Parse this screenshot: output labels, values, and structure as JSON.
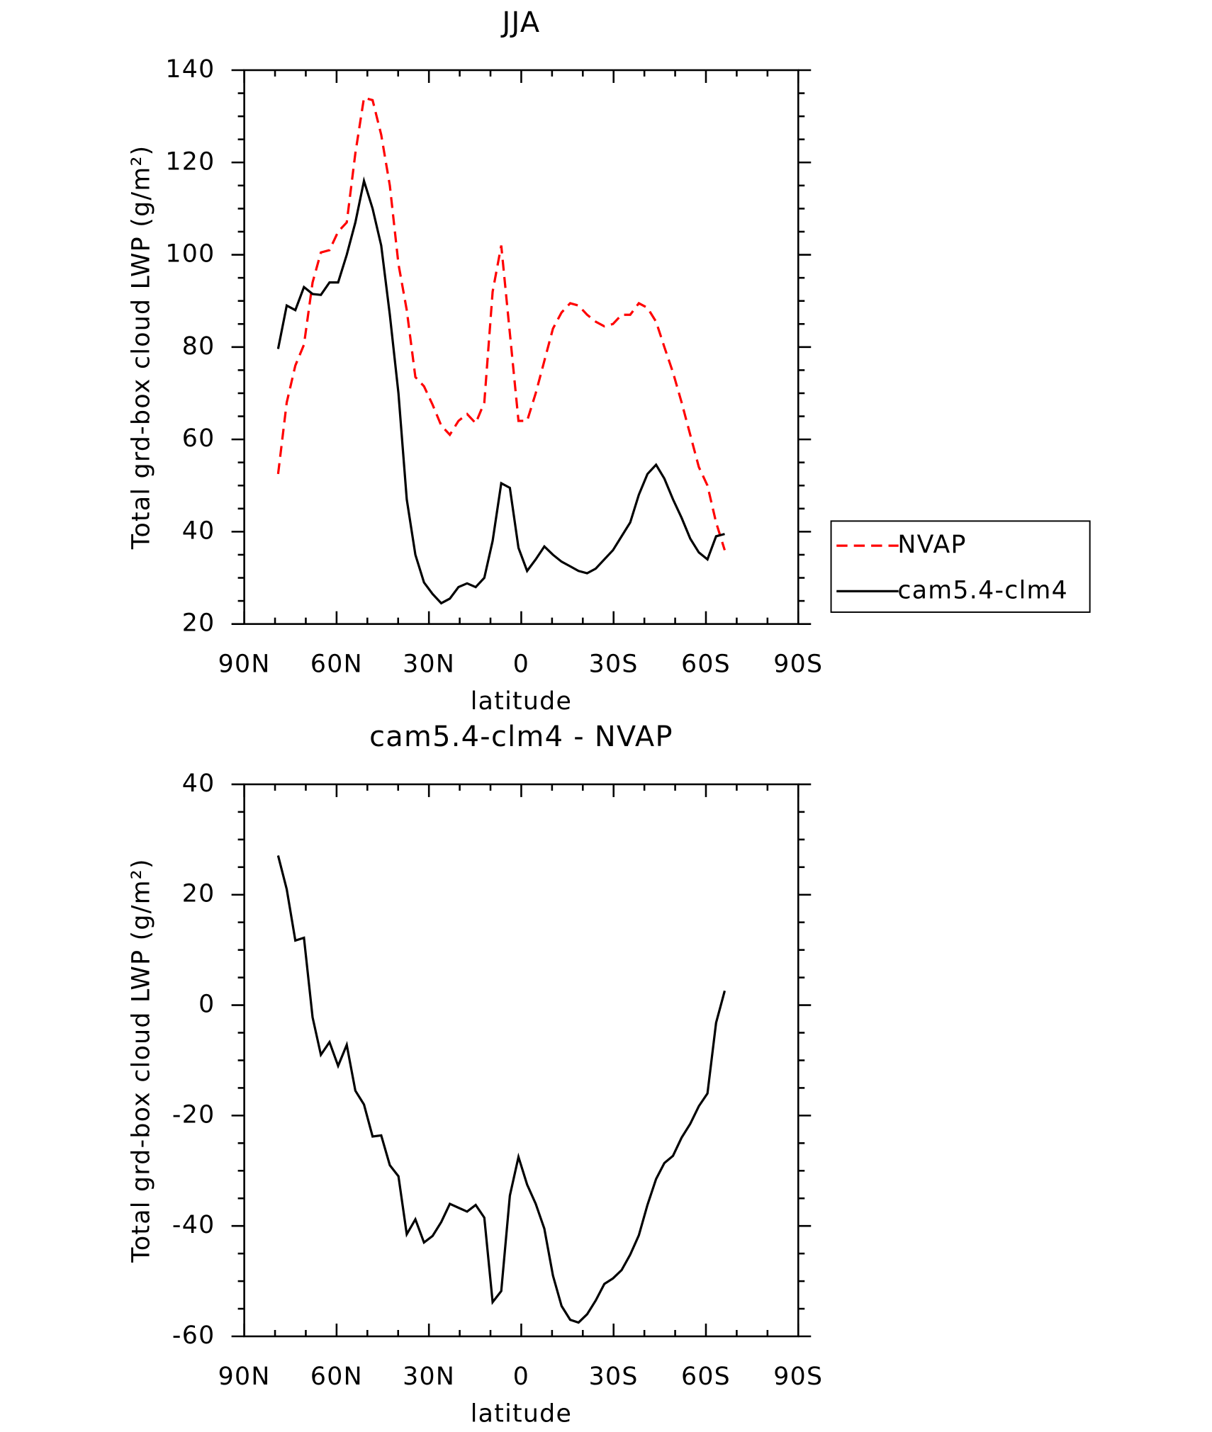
{
  "chart_data": [
    {
      "type": "line",
      "title": "JJA",
      "xlabel": "latitude",
      "ylabel": "Total grd-box cloud LWP (g/m²)",
      "x": [
        79.0,
        76.2,
        73.4,
        70.6,
        67.8,
        65.1,
        62.3,
        59.5,
        56.7,
        53.9,
        51.1,
        48.3,
        45.5,
        42.7,
        39.9,
        37.2,
        34.4,
        31.6,
        28.8,
        26.0,
        23.2,
        20.4,
        17.6,
        14.8,
        12.0,
        9.3,
        6.5,
        3.7,
        0.9,
        -1.9,
        -4.7,
        -7.5,
        -10.3,
        -13.1,
        -15.9,
        -18.6,
        -21.4,
        -24.2,
        -27.0,
        -29.8,
        -32.6,
        -35.4,
        -38.2,
        -41.0,
        -43.8,
        -46.5,
        -49.3,
        -52.1,
        -54.9,
        -57.7,
        -60.5,
        -63.3,
        -66.1
      ],
      "series": [
        {
          "name": "NVAP",
          "color": "#ff0000",
          "dash": true,
          "values": [
            52.5,
            68,
            76,
            80.5,
            94,
            100.5,
            101,
            105,
            107,
            122,
            134,
            133.5,
            126,
            115,
            98,
            88,
            73.5,
            71.5,
            67.5,
            63,
            61,
            64,
            65.5,
            63.5,
            68,
            92,
            102,
            83,
            64,
            64,
            70,
            77,
            84,
            87.5,
            89.5,
            89,
            87,
            85.5,
            84.5,
            85,
            87,
            87,
            89.5,
            88.5,
            85.5,
            80,
            74.5,
            68,
            61,
            54,
            50,
            42,
            36
          ]
        },
        {
          "name": "cam5.4-clm4",
          "color": "#000000",
          "dash": false,
          "values": [
            79.6,
            89,
            88,
            93,
            91.5,
            91.3,
            94,
            94,
            100,
            107,
            116,
            110,
            102,
            87,
            70,
            47,
            35,
            29,
            26.5,
            24.5,
            25.5,
            28,
            28.8,
            28,
            30,
            38,
            50.5,
            49.5,
            36.5,
            31.5,
            34,
            36.8,
            35,
            33.5,
            32.5,
            31.5,
            31,
            32,
            34,
            36,
            39,
            42,
            48,
            52.5,
            54.5,
            51.5,
            47,
            43,
            38.5,
            35.5,
            34,
            39,
            39.5
          ]
        }
      ],
      "xlim": [
        90,
        -90
      ],
      "xticks": [
        {
          "value": 90,
          "label": "90N"
        },
        {
          "value": 60,
          "label": "60N"
        },
        {
          "value": 30,
          "label": "30N"
        },
        0,
        {
          "value": -30,
          "label": "30S"
        },
        {
          "value": -60,
          "label": "60S"
        },
        {
          "value": -90,
          "label": "90S"
        }
      ],
      "ylim": [
        20,
        140
      ],
      "yticks": [
        20,
        40,
        60,
        80,
        100,
        120,
        140
      ],
      "legend": "right"
    },
    {
      "type": "line",
      "title": "cam5.4-clm4 - NVAP",
      "xlabel": "latitude",
      "ylabel": "Total grd-box cloud LWP (g/m²)",
      "x": [
        79.0,
        76.2,
        73.4,
        70.6,
        67.8,
        65.1,
        62.3,
        59.5,
        56.7,
        53.9,
        51.1,
        48.3,
        45.5,
        42.7,
        39.9,
        37.2,
        34.4,
        31.6,
        28.8,
        26.0,
        23.2,
        20.4,
        17.6,
        14.8,
        12.0,
        9.3,
        6.5,
        3.7,
        0.9,
        -1.9,
        -4.7,
        -7.5,
        -10.3,
        -13.1,
        -15.9,
        -18.6,
        -21.4,
        -24.2,
        -27.0,
        -29.8,
        -32.6,
        -35.4,
        -38.2,
        -41.0,
        -43.8,
        -46.5,
        -49.3,
        -52.1,
        -54.9,
        -57.7,
        -60.5,
        -63.3,
        -66.1
      ],
      "color": "#000000",
      "values": [
        27.1,
        21,
        11.7,
        12.2,
        -2.2,
        -9,
        -6.7,
        -11,
        -7.2,
        -15.5,
        -18,
        -23.8,
        -23.6,
        -29,
        -31,
        -41.5,
        -38.8,
        -43,
        -41.8,
        -39.3,
        -36,
        -36.7,
        -37.4,
        -36.2,
        -38.5,
        -53.8,
        -51.8,
        -34.5,
        -27.5,
        -32.5,
        -36,
        -40.5,
        -49,
        -54.5,
        -57,
        -57.5,
        -56,
        -53.5,
        -50.5,
        -49.5,
        -48,
        -45.2,
        -41.7,
        -36.2,
        -31.5,
        -28.6,
        -27.3,
        -24,
        -21.5,
        -18.3,
        -16,
        -3.2,
        2.6
      ],
      "xlim": [
        90,
        -90
      ],
      "xticks": [
        {
          "value": 90,
          "label": "90N"
        },
        {
          "value": 60,
          "label": "60N"
        },
        {
          "value": 30,
          "label": "30N"
        },
        0,
        {
          "value": -30,
          "label": "30S"
        },
        {
          "value": -60,
          "label": "60S"
        },
        {
          "value": -90,
          "label": "90S"
        }
      ],
      "ylim": [
        -60,
        40
      ],
      "yticks": [
        -60,
        -40,
        -20,
        0,
        20,
        40
      ]
    }
  ]
}
